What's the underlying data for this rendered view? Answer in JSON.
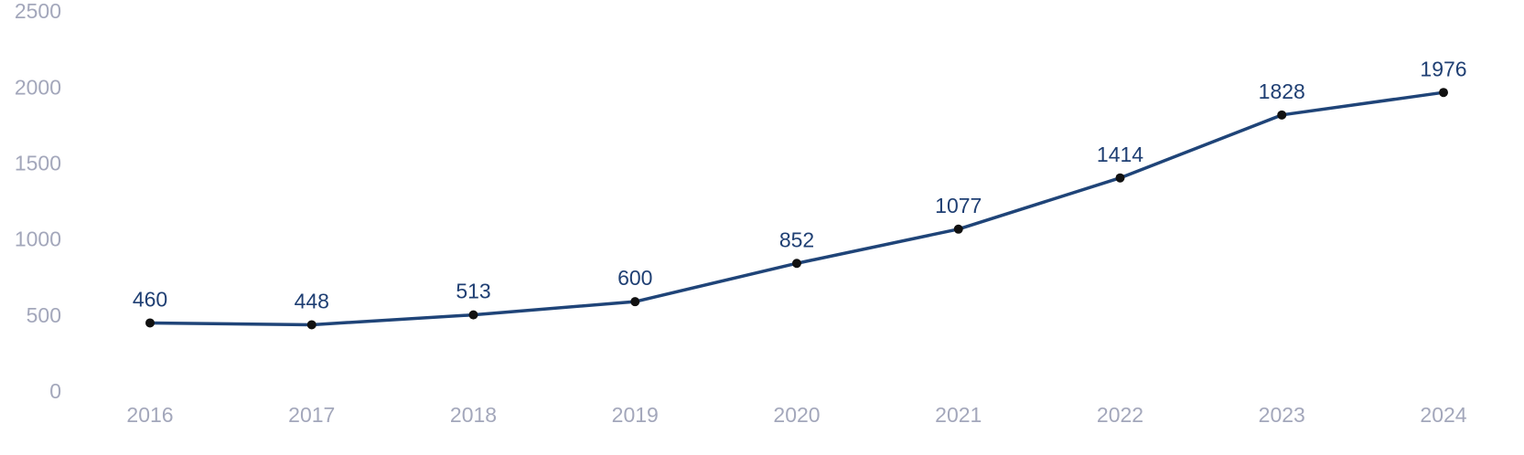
{
  "chart_data": {
    "type": "line",
    "categories": [
      "2016",
      "2017",
      "2018",
      "2019",
      "2020",
      "2021",
      "2022",
      "2023",
      "2024"
    ],
    "series": [
      {
        "color": "#1f4478",
        "values": [
          460,
          448,
          513,
          600,
          852,
          1077,
          1414,
          1828,
          1976
        ]
      }
    ],
    "ylim": [
      0,
      2500
    ],
    "yticks": [
      0,
      500,
      1000,
      1500,
      2000,
      2500
    ],
    "grid": false
  }
}
